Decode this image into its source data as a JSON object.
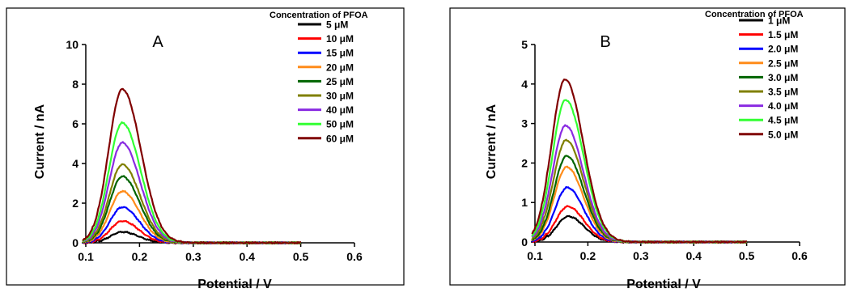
{
  "chart_data": [
    {
      "type": "line",
      "panel_label": "A",
      "xlabel": "Potential / V",
      "ylabel": "Current / nA",
      "xlim": [
        0.1,
        0.6
      ],
      "ylim": [
        0,
        10
      ],
      "xticks": [
        "0.1",
        "0.2",
        "0.3",
        "0.4",
        "0.5",
        "0.6"
      ],
      "yticks": [
        "0",
        "2",
        "4",
        "6",
        "8",
        "10"
      ],
      "legend_title": "Concentration of PFOA",
      "legend_position": "top-right",
      "x_end": 0.5,
      "series": [
        {
          "name": "5 μM",
          "color": "#000000",
          "peak_x": 0.168,
          "peak_y": 0.55
        },
        {
          "name": "10 μM",
          "color": "#ff0000",
          "peak_x": 0.168,
          "peak_y": 1.1
        },
        {
          "name": "15 μM",
          "color": "#0000ff",
          "peak_x": 0.168,
          "peak_y": 1.8
        },
        {
          "name": "20 μM",
          "color": "#ff8c1a",
          "peak_x": 0.168,
          "peak_y": 2.6
        },
        {
          "name": "25 μM",
          "color": "#006400",
          "peak_x": 0.168,
          "peak_y": 3.35
        },
        {
          "name": "30 μM",
          "color": "#808000",
          "peak_x": 0.168,
          "peak_y": 3.95
        },
        {
          "name": "40 μM",
          "color": "#8a2be2",
          "peak_x": 0.168,
          "peak_y": 5.05
        },
        {
          "name": "50 μM",
          "color": "#33ff33",
          "peak_x": 0.168,
          "peak_y": 6.05
        },
        {
          "name": "60 μM",
          "color": "#800000",
          "peak_x": 0.168,
          "peak_y": 7.75
        }
      ]
    },
    {
      "type": "line",
      "panel_label": "B",
      "xlabel": "Potential / V",
      "ylabel": "Current / nA",
      "xlim": [
        0.1,
        0.6
      ],
      "ylim": [
        0,
        5
      ],
      "xticks": [
        "0.1",
        "0.2",
        "0.3",
        "0.4",
        "0.5",
        "0.6"
      ],
      "yticks": [
        "0",
        "1",
        "2",
        "3",
        "4",
        "5"
      ],
      "legend_title": "Concentration of PFOA",
      "legend_position": "top-right",
      "x_end": 0.5,
      "series": [
        {
          "name": "1 μM",
          "color": "#000000",
          "peak_x": 0.163,
          "peak_y": 0.65
        },
        {
          "name": "1.5 μM",
          "color": "#ff0000",
          "peak_x": 0.162,
          "peak_y": 0.9
        },
        {
          "name": "2.0 μM",
          "color": "#0000ff",
          "peak_x": 0.161,
          "peak_y": 1.38
        },
        {
          "name": "2.5 μM",
          "color": "#ff8c1a",
          "peak_x": 0.16,
          "peak_y": 1.9
        },
        {
          "name": "3.0 μM",
          "color": "#006400",
          "peak_x": 0.16,
          "peak_y": 2.18
        },
        {
          "name": "3.5 μM",
          "color": "#808000",
          "peak_x": 0.159,
          "peak_y": 2.58
        },
        {
          "name": "4.0 μM",
          "color": "#8a2be2",
          "peak_x": 0.158,
          "peak_y": 2.95
        },
        {
          "name": "4.5 μM",
          "color": "#33ff33",
          "peak_x": 0.158,
          "peak_y": 3.6
        },
        {
          "name": "5.0 μM",
          "color": "#800000",
          "peak_x": 0.157,
          "peak_y": 4.12
        }
      ]
    }
  ]
}
